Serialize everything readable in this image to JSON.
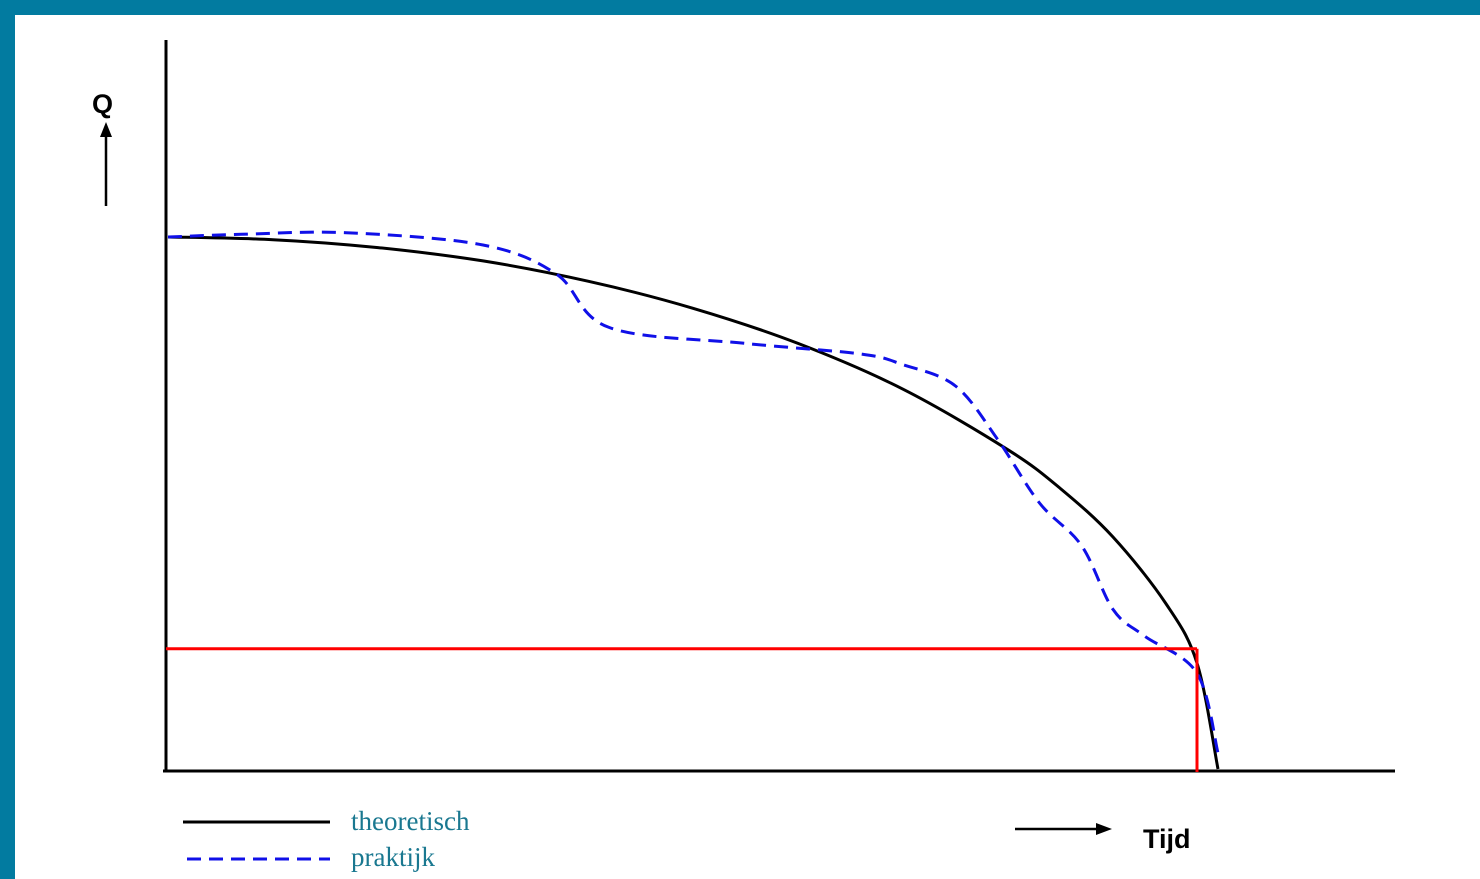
{
  "colors": {
    "frame": "#027ba0",
    "theoretical": "#000000",
    "practical": "#1010e8",
    "marker": "#ff0000",
    "legend_text": "#1a7890"
  },
  "axes": {
    "y_label": "Q",
    "x_label": "Tijd"
  },
  "legend": {
    "theoretical": "theoretisch",
    "practical": "praktijk"
  },
  "chart_data": {
    "type": "line",
    "xlabel": "Tijd",
    "ylabel": "Q",
    "xlim": [
      0,
      1
    ],
    "ylim": [
      0,
      1
    ],
    "grid": false,
    "legend_position": "bottom-left",
    "series": [
      {
        "name": "theoretisch",
        "style": "solid",
        "x": [
          0,
          0.1,
          0.2,
          0.3,
          0.4,
          0.5,
          0.6,
          0.7,
          0.8,
          0.85,
          0.9,
          0.95,
          0.98,
          1.0
        ],
        "y": [
          1.0,
          0.995,
          0.98,
          0.955,
          0.917,
          0.866,
          0.8,
          0.714,
          0.6,
          0.527,
          0.436,
          0.312,
          0.199,
          0.0
        ]
      },
      {
        "name": "praktijk",
        "style": "dashed",
        "x": [
          0,
          0.07,
          0.17,
          0.3,
          0.37,
          0.42,
          0.55,
          0.66,
          0.7,
          0.75,
          0.79,
          0.83,
          0.87,
          0.9,
          0.93,
          0.98,
          1.0
        ],
        "y": [
          1.0,
          1.005,
          1.008,
          0.985,
          0.93,
          0.83,
          0.8,
          0.78,
          0.76,
          0.72,
          0.62,
          0.5,
          0.42,
          0.3,
          0.25,
          0.18,
          0.03
        ]
      }
    ],
    "markers": {
      "horizontal_line_y": 0.226,
      "vertical_line_x": 0.98
    }
  }
}
